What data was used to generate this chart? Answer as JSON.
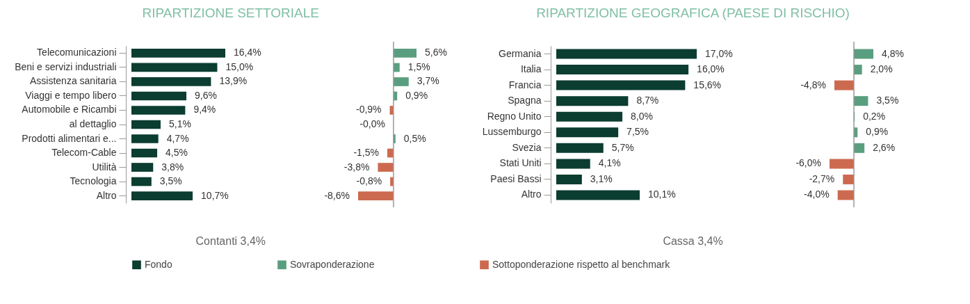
{
  "chart_data": [
    {
      "type": "bar",
      "orientation": "horizontal",
      "title": "RIPARTIZIONE SETTORIALE",
      "categories": [
        "Telecomunicazioni",
        "Beni e servizi industriali",
        "Assistenza sanitaria",
        "Viaggi e tempo libero",
        "Automobile e Ricambi",
        "al dettaglio",
        "Prodotti alimentari e...",
        "Telecom-Cable",
        "Utilità",
        "Tecnologia",
        "Altro"
      ],
      "legend": "bottom",
      "annotations": [
        "Contanti 3,4%"
      ],
      "series": [
        {
          "name": "Fondo",
          "color": "#0b3d30",
          "values": [
            16.4,
            15.0,
            13.9,
            9.6,
            9.4,
            5.1,
            4.7,
            4.5,
            3.8,
            3.5,
            10.7
          ],
          "value_labels": [
            "16,4%",
            "15,0%",
            "13,9%",
            "9,6%",
            "9,4%",
            "5,1%",
            "4,7%",
            "4,5%",
            "3,8%",
            "3,5%",
            "10,7%"
          ]
        }
      ]
    },
    {
      "type": "bar",
      "orientation": "horizontal",
      "categories": [
        null,
        null,
        null,
        null,
        null,
        null,
        null,
        null,
        null,
        null,
        null
      ],
      "legend": "bottom",
      "series": [
        {
          "name": "Sovraponderazione",
          "color": "#5a9e80",
          "values": [
            5.6,
            1.5,
            3.7,
            0.9,
            null,
            null,
            0.5,
            null,
            null,
            null,
            null
          ],
          "value_labels": [
            "5,6%",
            "1,5%",
            "3,7%",
            "0,9%",
            null,
            null,
            "0,5%",
            null,
            null,
            null,
            null
          ]
        },
        {
          "name": "Sottoponderazione rispetto al benchmark",
          "color": "#cc6a4f",
          "values": [
            null,
            null,
            null,
            null,
            -0.9,
            -0.0,
            null,
            -1.5,
            -3.8,
            -0.8,
            -8.6
          ],
          "value_labels": [
            null,
            null,
            null,
            null,
            "-0,9%",
            "-0,0%",
            null,
            "-1,5%",
            "-3,8%",
            "-0,8%",
            "-8,6%"
          ]
        }
      ]
    },
    {
      "type": "bar",
      "orientation": "horizontal",
      "title": "RIPARTIZIONE GEOGRAFICA (PAESE DI RISCHIO)",
      "categories": [
        "Germania",
        "Italia",
        "Francia",
        "Spagna",
        "Regno Unito",
        "Lussemburgo",
        "Svezia",
        "Stati Uniti",
        "Paesi Bassi",
        "Altro"
      ],
      "legend": "bottom",
      "annotations": [
        "Cassa 3,4%"
      ],
      "series": [
        {
          "name": "Fondo",
          "color": "#0b3d30",
          "values": [
            17.0,
            16.0,
            15.6,
            8.7,
            8.0,
            7.5,
            5.7,
            4.1,
            3.1,
            10.1
          ],
          "value_labels": [
            "17,0%",
            "16,0%",
            "15,6%",
            "8,7%",
            "8,0%",
            "7,5%",
            "5,7%",
            "4,1%",
            "3,1%",
            "10,1%"
          ]
        }
      ]
    },
    {
      "type": "bar",
      "orientation": "horizontal",
      "categories": [
        null,
        null,
        null,
        null,
        null,
        null,
        null,
        null,
        null,
        null
      ],
      "legend": "bottom",
      "series": [
        {
          "name": "Sovraponderazione",
          "color": "#5a9e80",
          "values": [
            4.8,
            2.0,
            null,
            3.5,
            0.2,
            0.9,
            2.6,
            null,
            null,
            null
          ],
          "value_labels": [
            "4,8%",
            "2,0%",
            null,
            "3,5%",
            "0,2%",
            "0,9%",
            "2,6%",
            null,
            null,
            null
          ]
        },
        {
          "name": "Sottoponderazione rispetto al benchmark",
          "color": "#cc6a4f",
          "values": [
            null,
            null,
            -4.8,
            null,
            null,
            null,
            null,
            -6.0,
            -2.7,
            -4.0
          ],
          "value_labels": [
            null,
            null,
            "-4,8%",
            null,
            null,
            null,
            null,
            "-6,0%",
            "-2,7%",
            "-4,0%"
          ]
        }
      ]
    }
  ]
}
